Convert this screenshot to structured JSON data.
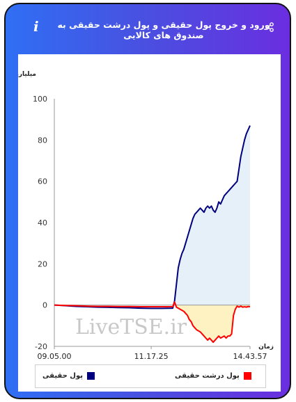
{
  "header": {
    "title": "ورود و خروج پول حقیقی و پول درشت حقیقی به صندوق های کالایی",
    "info_icon": "i"
  },
  "icons": {
    "share": "share-icon",
    "info": "info-icon"
  },
  "colors": {
    "gradient_start": "#2f6ff4",
    "gradient_end": "#6a2ee0",
    "real_money": "#00007f",
    "real_money_fill": "#e6f0f8",
    "large_real_money": "#ff0000",
    "large_real_money_fill": "#fff2c2"
  },
  "watermark": "LiveTSE.ir",
  "chart_data": {
    "type": "area",
    "title": "",
    "ylabel": "میلیارد تومان",
    "xlabel": "زمان",
    "ylim": [
      -20,
      100
    ],
    "yticks": [
      -20,
      0,
      20,
      40,
      60,
      80,
      100
    ],
    "xtick_labels": [
      "09.05.00",
      "11.17.25",
      "14.43.57"
    ],
    "grid": false,
    "legend_position": "bottom",
    "x": [
      "09.05.00",
      "09.20",
      "09.35",
      "09.50",
      "10.05",
      "10.20",
      "10.35",
      "10.50",
      "11.05",
      "11.17.25",
      "11.25",
      "11.32",
      "11.35",
      "11.38",
      "11.40",
      "11.42",
      "11.45",
      "11.48",
      "11.52",
      "11.55",
      "12.00",
      "12.05",
      "12.10",
      "12.15",
      "12.20",
      "12.25",
      "12.30",
      "12.35",
      "12.40",
      "12.45",
      "12.50",
      "12.55",
      "13.00",
      "13.05",
      "13.10",
      "13.15",
      "13.20",
      "13.25",
      "13.30",
      "13.35",
      "13.40",
      "13.45",
      "13.50",
      "13.55",
      "14.00",
      "14.05",
      "14.10",
      "14.15",
      "14.20",
      "14.25",
      "14.30",
      "14.35",
      "14.40",
      "14.43.57"
    ],
    "series": [
      {
        "name": "پول حقیقی",
        "values": [
          0,
          -0.3,
          -0.6,
          -0.8,
          -1.0,
          -1.1,
          -1.2,
          -1.3,
          -1.5,
          -1.6,
          -1.6,
          -1.5,
          2,
          10,
          18,
          22,
          25,
          27,
          30,
          33,
          36,
          39,
          42,
          44,
          45,
          46,
          47,
          46,
          45,
          47,
          48,
          47,
          48,
          46,
          45,
          47,
          50,
          49,
          51,
          53,
          54,
          55,
          56,
          57,
          58,
          59,
          60,
          66,
          72,
          76,
          80,
          83,
          85,
          87
        ]
      },
      {
        "name": "پول درشت حقیقی",
        "values": [
          0,
          -0.2,
          -0.3,
          -0.5,
          -0.6,
          -0.6,
          -0.7,
          -0.7,
          -0.8,
          -0.8,
          -0.8,
          -0.8,
          1.5,
          -1,
          -1.5,
          -2,
          -2.5,
          -3,
          -4,
          -5,
          -7,
          -8,
          -10,
          -11,
          -12,
          -12.5,
          -13,
          -14,
          -15,
          -16,
          -17,
          -16,
          -17,
          -18,
          -17,
          -16,
          -15,
          -16,
          -15.5,
          -15,
          -16,
          -15,
          -15,
          -14,
          -5,
          -2,
          -0.5,
          -1,
          -0.5,
          -1,
          -0.8,
          -1,
          -0.7,
          -0.8
        ]
      }
    ]
  }
}
